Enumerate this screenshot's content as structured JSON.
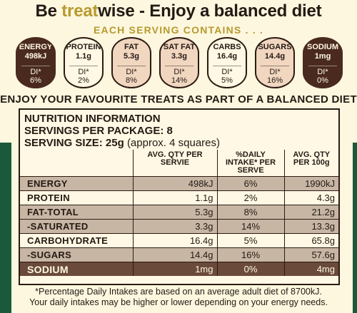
{
  "headline": {
    "pre": "Be ",
    "treat": "treat",
    "post": "wise - Enjoy a balanced diet"
  },
  "each_serving": "EACH SERVING CONTAINS . . .",
  "gda": [
    {
      "label": "ENERGY",
      "value": "498kJ",
      "di": "DI*",
      "pct": "6%"
    },
    {
      "label": "PROTEIN",
      "value": "1.1g",
      "di": "DI*",
      "pct": "2%"
    },
    {
      "label": "FAT",
      "value": "5.3g",
      "di": "DI*",
      "pct": "8%"
    },
    {
      "label": "SAT FAT",
      "value": "3.3g",
      "di": "DI*",
      "pct": "14%"
    },
    {
      "label": "CARBS",
      "value": "16.4g",
      "di": "DI*",
      "pct": "5%"
    },
    {
      "label": "SUGARS",
      "value": "14.4g",
      "di": "DI*",
      "pct": "16%"
    },
    {
      "label": "SODIUM",
      "value": "1mg",
      "di": "DI*",
      "pct": "0%"
    }
  ],
  "enjoy": "ENJOY YOUR FAVOURITE TREATS AS PART OF A BALANCED DIET",
  "panel": {
    "title": "NUTRITION INFORMATION",
    "servings": "SERVINGS PER PACKAGE: 8",
    "serving_size": "SERVING SIZE: 25g",
    "serving_approx": "(approx. 4 squares)",
    "headers": {
      "per_serve": "AVG. QTY PER SERVIE",
      "daily": "%DAILY INTAKE* PER SERVE",
      "per_100": "AVG. QTY PER 100g"
    },
    "rows": [
      {
        "label": "ENERGY",
        "per_serve": "498kJ",
        "daily": "6%",
        "per_100": "1990kJ"
      },
      {
        "label": "PROTEIN",
        "per_serve": "1.1g",
        "daily": "2%",
        "per_100": "4.3g"
      },
      {
        "label": "FAT-TOTAL",
        "per_serve": "5.3g",
        "daily": "8%",
        "per_100": "21.2g"
      },
      {
        "label": "-SATURATED",
        "per_serve": "3.3g",
        "daily": "14%",
        "per_100": "13.3g"
      },
      {
        "label": "CARBOHYDRATE",
        "per_serve": "16.4g",
        "daily": "5%",
        "per_100": "65.8g"
      },
      {
        "label": "-SUGARS",
        "per_serve": "14.4g",
        "daily": "16%",
        "per_100": "57.6g"
      },
      {
        "label": "SODIUM",
        "per_serve": "1mg",
        "daily": "0%",
        "per_100": "4mg"
      }
    ]
  },
  "footnote": {
    "line1": "*Percentage Daily Intakes are based on an average adult diet of 8700kJ.",
    "line2": "Your daily intakes may be higher or lower depending on your energy needs."
  },
  "colors": {
    "brown": "#4a2a1e",
    "gold": "#b79a2e",
    "cream": "#fdf7df",
    "green": "#1a5a3a"
  }
}
